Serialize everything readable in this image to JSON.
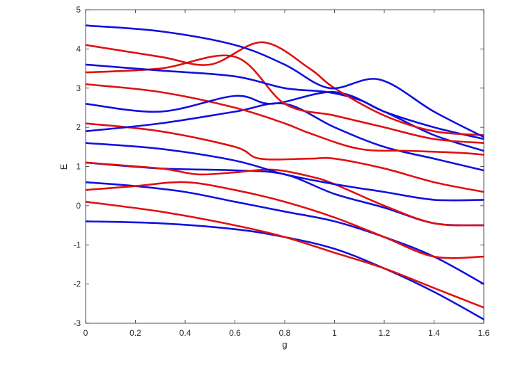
{
  "chart_data": {
    "type": "line",
    "title": "",
    "xlabel": "g",
    "ylabel": "E",
    "xlim": [
      0,
      1.6
    ],
    "ylim": [
      -3,
      5
    ],
    "xticks": [
      0,
      0.2,
      0.4,
      0.6,
      0.8,
      1,
      1.2,
      1.4,
      1.6
    ],
    "xtick_labels": [
      "0",
      "0.2",
      "0.4",
      "0.6",
      "0.8",
      "1",
      "1.2",
      "1.4",
      "1.6"
    ],
    "yticks": [
      -3,
      -2,
      -1,
      0,
      1,
      2,
      3,
      4,
      5
    ],
    "ytick_labels": [
      "-3",
      "-2",
      "-1",
      "0",
      "1",
      "2",
      "3",
      "4",
      "5"
    ],
    "grid": false,
    "legend": "none",
    "colors": {
      "blue": "#1010e0",
      "red": "#e01010"
    },
    "series": [
      {
        "color": "blue",
        "x": [
          0,
          0.3,
          0.6,
          0.8,
          1.0,
          1.2,
          1.4,
          1.6
        ],
        "y": [
          -0.4,
          -0.45,
          -0.6,
          -0.8,
          -1.1,
          -1.6,
          -2.2,
          -2.9
        ]
      },
      {
        "color": "red",
        "x": [
          0,
          0.3,
          0.6,
          0.8,
          1.0,
          1.2,
          1.4,
          1.6
        ],
        "y": [
          0.1,
          -0.15,
          -0.5,
          -0.8,
          -1.2,
          -1.6,
          -2.1,
          -2.6
        ]
      },
      {
        "color": "blue",
        "x": [
          0,
          0.2,
          0.4,
          0.6,
          0.8,
          1.0,
          1.2,
          1.4,
          1.6
        ],
        "y": [
          0.6,
          0.5,
          0.35,
          0.1,
          -0.15,
          -0.4,
          -0.8,
          -1.3,
          -2.0
        ]
      },
      {
        "color": "red",
        "x": [
          0,
          0.2,
          0.4,
          0.6,
          0.8,
          1.0,
          1.2,
          1.4,
          1.6
        ],
        "y": [
          0.4,
          0.5,
          0.6,
          0.4,
          0.1,
          -0.3,
          -0.8,
          -1.3,
          -1.3
        ]
      },
      {
        "color": "blue",
        "x": [
          0,
          0.3,
          0.6,
          0.8,
          1.0,
          1.2,
          1.4,
          1.6
        ],
        "y": [
          1.1,
          0.95,
          0.9,
          0.8,
          0.3,
          -0.05,
          -0.45,
          -0.5
        ]
      },
      {
        "color": "red",
        "x": [
          0,
          0.3,
          0.45,
          0.6,
          0.75,
          0.9,
          1.0,
          1.2,
          1.4,
          1.6
        ],
        "y": [
          1.1,
          0.95,
          0.8,
          0.85,
          0.92,
          0.75,
          0.55,
          0.0,
          -0.45,
          -0.5
        ]
      },
      {
        "color": "blue",
        "x": [
          0,
          0.3,
          0.6,
          0.8,
          1.0,
          1.2,
          1.4,
          1.6
        ],
        "y": [
          1.6,
          1.45,
          1.15,
          0.8,
          0.55,
          0.35,
          0.15,
          0.15
        ]
      },
      {
        "color": "red",
        "x": [
          0,
          0.3,
          0.6,
          0.7,
          0.9,
          1.0,
          1.2,
          1.4,
          1.6
        ],
        "y": [
          2.1,
          1.9,
          1.5,
          1.2,
          1.2,
          1.2,
          0.95,
          0.6,
          0.35
        ]
      },
      {
        "color": "blue",
        "x": [
          0,
          0.3,
          0.6,
          0.8,
          1.0,
          1.2,
          1.4,
          1.6
        ],
        "y": [
          1.9,
          2.1,
          2.4,
          2.6,
          2.0,
          1.5,
          1.2,
          0.9
        ]
      },
      {
        "color": "red",
        "x": [
          0,
          0.3,
          0.6,
          0.8,
          0.9,
          1.1,
          1.3,
          1.5,
          1.6
        ],
        "y": [
          3.1,
          2.9,
          2.5,
          2.1,
          1.85,
          1.45,
          1.4,
          1.35,
          1.3
        ]
      },
      {
        "color": "blue",
        "x": [
          0,
          0.3,
          0.6,
          0.75,
          1.0,
          1.2,
          1.4,
          1.6
        ],
        "y": [
          2.6,
          2.4,
          2.8,
          2.6,
          2.9,
          2.4,
          1.8,
          1.4
        ]
      },
      {
        "color": "red",
        "x": [
          0,
          0.3,
          0.6,
          0.8,
          1.0,
          1.2,
          1.4,
          1.6
        ],
        "y": [
          3.4,
          3.5,
          3.8,
          2.6,
          2.3,
          2.0,
          1.7,
          1.6
        ]
      },
      {
        "color": "blue",
        "x": [
          0,
          0.3,
          0.6,
          0.8,
          0.97,
          1.1,
          1.2,
          1.4,
          1.6
        ],
        "y": [
          3.6,
          3.45,
          3.3,
          3.0,
          2.9,
          2.7,
          2.4,
          2.0,
          1.7
        ]
      },
      {
        "color": "red",
        "x": [
          0,
          0.3,
          0.5,
          0.71,
          0.9,
          1.0,
          1.2,
          1.4,
          1.6
        ],
        "y": [
          4.1,
          3.8,
          3.6,
          4.17,
          3.5,
          3.0,
          2.3,
          1.9,
          1.8
        ]
      },
      {
        "color": "blue",
        "x": [
          0,
          0.3,
          0.6,
          0.8,
          0.98,
          1.18,
          1.4,
          1.6
        ],
        "y": [
          4.6,
          4.45,
          4.1,
          3.6,
          3.0,
          3.22,
          2.4,
          1.75
        ]
      }
    ]
  }
}
